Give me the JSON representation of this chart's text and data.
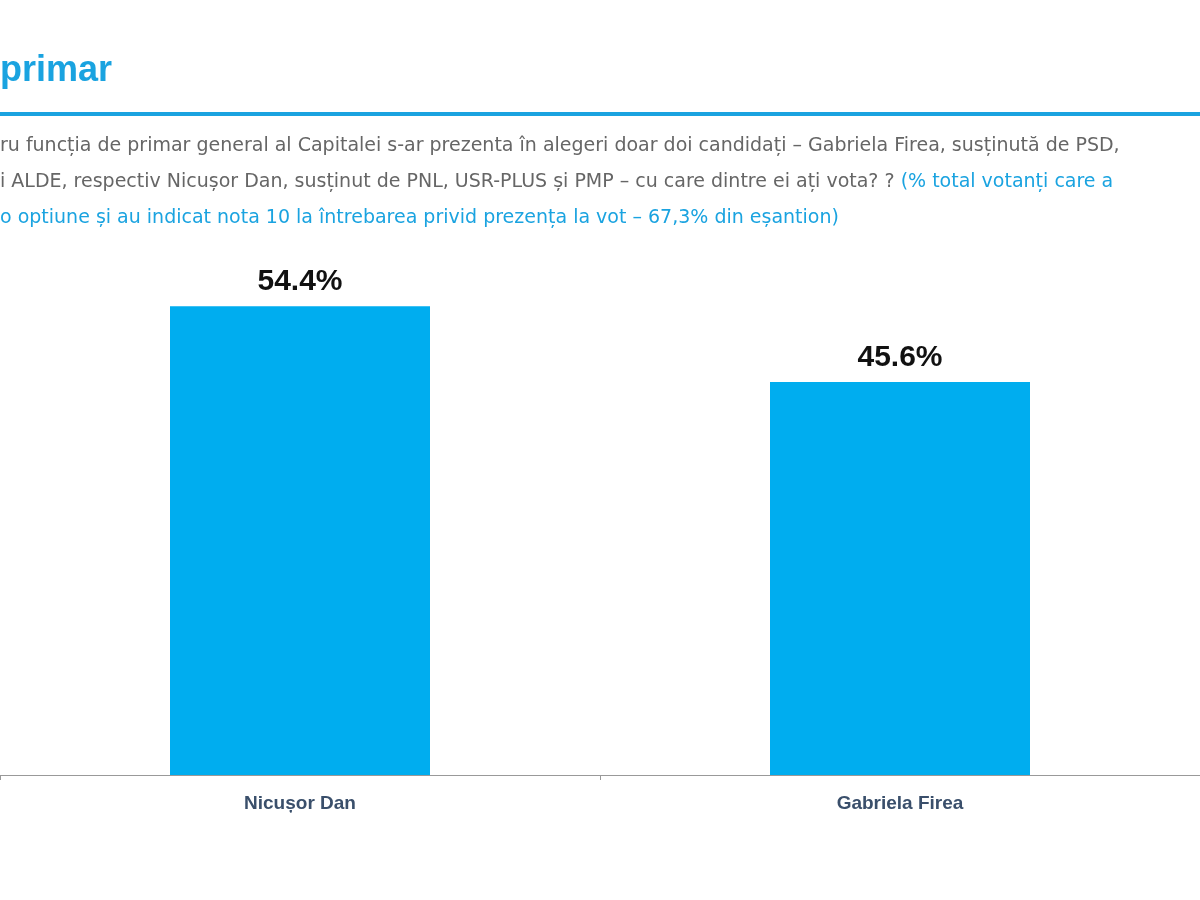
{
  "chart_data": {
    "type": "bar",
    "title": "primar",
    "subtitle": "ru funcția de primar general al Capitalei s-ar prezenta în alegeri doar doi candidați – Gabriela Firea, susținută de PSD,\ni ALDE, respectiv Nicușor Dan, susținut de PNL, USR-PLUS și PMP – cu care dintre ei ați vota? ?",
    "annotations": [
      "(% total votanți care a",
      "o optiune și au indicat nota 10 la întrebarea privid prezența la vot – 67,3% din eșantion)"
    ],
    "categories": [
      "Nicușor Dan",
      "Gabriela Firea"
    ],
    "values": [
      54.4,
      45.6
    ],
    "color": "#00adef",
    "tick_labels": "x",
    "grid": false,
    "value_labels": [
      "54.4%",
      "45.6%"
    ]
  }
}
